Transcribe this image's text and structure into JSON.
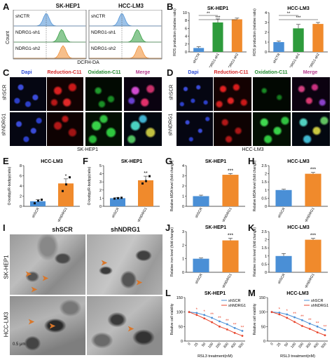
{
  "panels": {
    "A": {
      "label": "A",
      "left_title": "SK-HEP1",
      "right_title": "HCC-LM3",
      "ylabel": "Count",
      "xlabel": "DCFH-DA",
      "rows": [
        "shCTR",
        "NDRG1-sh1",
        "NDRG1-sh2"
      ],
      "colors": {
        "shCTR": "#4a8fd6",
        "sh1": "#2e9b3c",
        "sh2": "#f08a2c"
      }
    },
    "B": {
      "label": "B"
    },
    "C": {
      "label": "C",
      "cols": [
        "Dapi",
        "Reduction-C11",
        "Oxidation-C11",
        "Merge"
      ],
      "rows": [
        "shSCR",
        "shNDRG1"
      ],
      "cell": "SK-HEP1"
    },
    "D": {
      "label": "D",
      "cols": [
        "Dapi",
        "Reduction-C11",
        "Oxidation-C11",
        "Merge"
      ],
      "rows": [
        "shSCR",
        "shNDRG1"
      ],
      "cell": "HCC-LM3"
    },
    "E": {
      "label": "E"
    },
    "F": {
      "label": "F"
    },
    "G": {
      "label": "G"
    },
    "H": {
      "label": "H"
    },
    "I": {
      "label": "I",
      "cols": [
        "shSCR",
        "shNDRG1"
      ],
      "rows": [
        "SK-HEP1",
        "HCC-LM3"
      ],
      "scale": "0.5 μm"
    },
    "J": {
      "label": "J"
    },
    "K": {
      "label": "K"
    },
    "L": {
      "label": "L"
    },
    "M": {
      "label": "M"
    }
  },
  "chart_data": [
    {
      "id": "B1",
      "type": "bar",
      "title": "SK-HEP1",
      "ylabel": "ROS production (relative ratio)",
      "categories": [
        "shCTR",
        "NDRG1-sh1",
        "NDRG1-sh2"
      ],
      "values": [
        1,
        7.5,
        8.3
      ],
      "errors": [
        0.3,
        0.9,
        0.3
      ],
      "ylim": [
        0,
        10
      ],
      "yticks": [
        0,
        2,
        4,
        6,
        8,
        10
      ],
      "colors": [
        "#4a8fd6",
        "#2e9b3c",
        "#f08a2c"
      ],
      "sig": [
        {
          "from": 0,
          "to": 1,
          "text": "**"
        },
        {
          "from": 0,
          "to": 2,
          "text": "***"
        }
      ]
    },
    {
      "id": "B2",
      "type": "bar",
      "title": "HCC-LM3",
      "ylabel": "ROS production (relative ratio)",
      "categories": [
        "shCTR",
        "NDRG1-sh1",
        "NDRG1-sh2"
      ],
      "values": [
        1,
        2.4,
        2.85
      ],
      "errors": [
        0.1,
        0.4,
        0.15
      ],
      "ylim": [
        0,
        4
      ],
      "yticks": [
        0,
        1,
        2,
        3,
        4
      ],
      "colors": [
        "#4a8fd6",
        "#2e9b3c",
        "#f08a2c"
      ],
      "sig": [
        {
          "from": 0,
          "to": 1,
          "text": "**"
        },
        {
          "from": 0,
          "to": 2,
          "text": "***"
        }
      ]
    },
    {
      "id": "E",
      "type": "bar",
      "title": "HCC-LM3",
      "ylabel": "O-bodipy/R-bodipy(ratio)",
      "categories": [
        "shSCR",
        "shNDRG1"
      ],
      "values": [
        1,
        4.5
      ],
      "errors": [
        0.3,
        0.9
      ],
      "ylim": [
        0,
        8
      ],
      "yticks": [
        0,
        2,
        4,
        6,
        8
      ],
      "colors": [
        "#4a8fd6",
        "#f08a2c"
      ],
      "sig": [
        {
          "from": 1,
          "to": 1,
          "text": "*"
        }
      ],
      "dots": [
        [
          0.6,
          1.1,
          1.3
        ],
        [
          3.0,
          4.3,
          5.7
        ]
      ]
    },
    {
      "id": "F",
      "type": "bar",
      "title": "SK-HEP1",
      "ylabel": "O-bodipy/R-bodipy(ratio)",
      "categories": [
        "shSCR",
        "shNDRG1"
      ],
      "values": [
        1,
        3.2
      ],
      "errors": [
        0.1,
        0.5
      ],
      "ylim": [
        0,
        5
      ],
      "yticks": [
        0,
        1,
        2,
        3,
        4,
        5
      ],
      "colors": [
        "#4a8fd6",
        "#f08a2c"
      ],
      "sig": [
        {
          "from": 1,
          "to": 1,
          "text": "**"
        }
      ],
      "dots": [
        [
          0.95,
          1.0,
          1.05
        ],
        [
          2.8,
          3.1,
          3.7
        ]
      ]
    },
    {
      "id": "G",
      "type": "bar",
      "title": "SK-HEP1",
      "ylabel": "Relative MDA level (fold change)",
      "categories": [
        "shSCR",
        "shNDRG1"
      ],
      "values": [
        1,
        3.1
      ],
      "errors": [
        0.1,
        0.12
      ],
      "ylim": [
        0,
        4
      ],
      "yticks": [
        0,
        1,
        2,
        3,
        4
      ],
      "colors": [
        "#4a8fd6",
        "#f08a2c"
      ],
      "sig": [
        {
          "from": 1,
          "to": 1,
          "text": "***"
        }
      ]
    },
    {
      "id": "H",
      "type": "bar",
      "title": "HCC-LM3",
      "ylabel": "Relative MDA level (fold change)",
      "categories": [
        "shSCR",
        "shNDRG1"
      ],
      "values": [
        1,
        2.0
      ],
      "errors": [
        0.05,
        0.08
      ],
      "ylim": [
        0,
        2.5
      ],
      "yticks": [
        0,
        0.5,
        1,
        1.5,
        2,
        2.5
      ],
      "colors": [
        "#4a8fd6",
        "#f08a2c"
      ],
      "sig": [
        {
          "from": 1,
          "to": 1,
          "text": "***"
        }
      ]
    },
    {
      "id": "J",
      "type": "bar",
      "title": "SK-HEP1",
      "ylabel": "Relative iron level (fold change)",
      "categories": [
        "shSCR",
        "shNDRG1"
      ],
      "values": [
        1,
        2.35
      ],
      "errors": [
        0.05,
        0.15
      ],
      "ylim": [
        0,
        3
      ],
      "yticks": [
        0,
        1,
        2,
        3
      ],
      "colors": [
        "#4a8fd6",
        "#f08a2c"
      ],
      "sig": [
        {
          "from": 1,
          "to": 1,
          "text": "***"
        }
      ]
    },
    {
      "id": "K",
      "type": "bar",
      "title": "HCC-LM3",
      "ylabel": "Relative iron level (fold change)",
      "categories": [
        "shSCR",
        "shNDRG1"
      ],
      "values": [
        1,
        2.0
      ],
      "errors": [
        0.15,
        0.08
      ],
      "ylim": [
        0,
        2.5
      ],
      "yticks": [
        0,
        0.5,
        1,
        1.5,
        2,
        2.5
      ],
      "colors": [
        "#4a8fd6",
        "#f08a2c"
      ],
      "sig": [
        {
          "from": 1,
          "to": 1,
          "text": "***"
        }
      ]
    },
    {
      "id": "L",
      "type": "line",
      "title": "SK-HEP1",
      "ylabel": "Relative cell viability",
      "xlabel": "RSL3 treatment(nM)",
      "x": [
        "0",
        "25",
        "50",
        "100",
        "200",
        "300",
        "400",
        "500"
      ],
      "ylim": [
        0,
        150
      ],
      "yticks": [
        0,
        50,
        100,
        150
      ],
      "series": [
        {
          "name": "shSCR",
          "color": "#4a8fd6",
          "values": [
            100,
            97,
            90,
            80,
            68,
            58,
            45,
            35
          ]
        },
        {
          "name": "shNDRG1",
          "color": "#e8452c",
          "values": [
            100,
            90,
            78,
            65,
            50,
            40,
            28,
            18
          ]
        }
      ],
      "sig": [
        "",
        "*",
        "*",
        "**",
        "**",
        "**",
        "**",
        "**"
      ]
    },
    {
      "id": "M",
      "type": "line",
      "title": "HCC-LM3",
      "ylabel": "Relative cell viability",
      "xlabel": "RSL3 treatment(nM)",
      "x": [
        "0",
        "25",
        "50",
        "100",
        "200",
        "300",
        "400",
        "500"
      ],
      "ylim": [
        0,
        150
      ],
      "yticks": [
        0,
        50,
        100,
        150
      ],
      "series": [
        {
          "name": "shSCR",
          "color": "#4a8fd6",
          "values": [
            100,
            98,
            92,
            82,
            72,
            60,
            50,
            38
          ]
        },
        {
          "name": "shNDRG1",
          "color": "#e8452c",
          "values": [
            100,
            92,
            80,
            66,
            52,
            42,
            30,
            20
          ]
        }
      ],
      "sig": [
        "",
        "*",
        "*",
        "**",
        "**",
        "**",
        "**",
        "**"
      ]
    }
  ]
}
